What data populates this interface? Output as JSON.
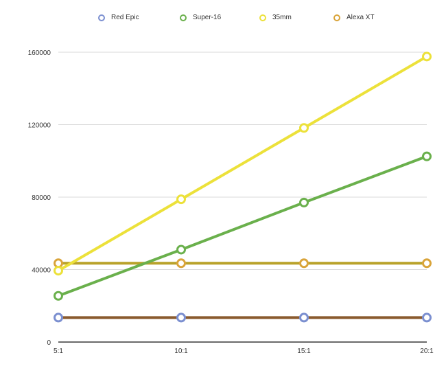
{
  "chart_data": {
    "type": "line",
    "title": "",
    "xlabel": "",
    "ylabel": "",
    "categories": [
      "5:1",
      "10:1",
      "15:1",
      "20:1"
    ],
    "ylim": [
      0,
      160000
    ],
    "yticks": [
      0,
      40000,
      80000,
      120000,
      160000
    ],
    "ytick_labels": [
      "0",
      "40000",
      "80000",
      "120000",
      "160000"
    ],
    "grid": true,
    "legend_position": "top",
    "series": [
      {
        "name": "Red Epic",
        "color": "#7b8fd0",
        "line_color": "#8a5a2e",
        "values": [
          13500,
          13500,
          13500,
          13500
        ]
      },
      {
        "name": "Super-16",
        "color": "#6ab04c",
        "line_color": "#6ab04c",
        "values": [
          25500,
          51000,
          77000,
          102500
        ]
      },
      {
        "name": "35mm",
        "color": "#ece13a",
        "line_color": "#ece13a",
        "values": [
          39400,
          78800,
          118200,
          157600
        ]
      },
      {
        "name": "Alexa XT",
        "color": "#d9a43a",
        "line_color": "#b9a22a",
        "values": [
          43500,
          43500,
          43500,
          43500
        ]
      }
    ]
  },
  "legend": {
    "items": [
      {
        "label": "Red Epic",
        "color": "#7b8fd0"
      },
      {
        "label": "Super-16",
        "color": "#6ab04c"
      },
      {
        "label": "35mm",
        "color": "#ece13a"
      },
      {
        "label": "Alexa XT",
        "color": "#d9a43a"
      }
    ]
  }
}
